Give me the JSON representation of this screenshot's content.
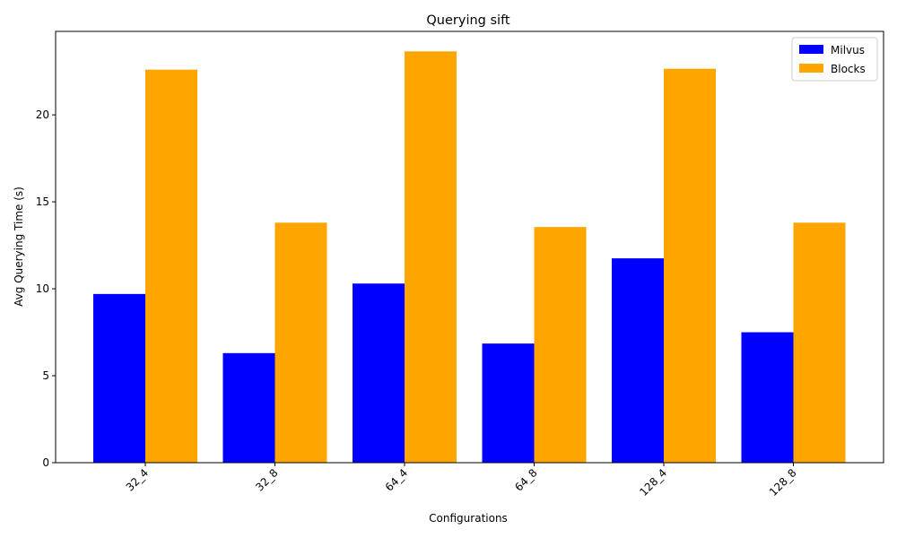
{
  "chart_data": {
    "type": "bar",
    "title": "Querying sift",
    "xlabel": "Configurations",
    "ylabel": "Avg Querying Time (s)",
    "categories": [
      "32_4",
      "32_8",
      "64_4",
      "64_8",
      "128_4",
      "128_8"
    ],
    "series": [
      {
        "name": "Milvus",
        "color": "#0000ff",
        "values": [
          9.7,
          6.3,
          10.3,
          6.85,
          11.75,
          7.5
        ]
      },
      {
        "name": "Blocks",
        "color": "#ffa500",
        "values": [
          22.6,
          13.8,
          23.65,
          13.55,
          22.65,
          13.8
        ]
      }
    ],
    "ylim": [
      0,
      24.8
    ],
    "yticks": [
      0,
      5,
      10,
      15,
      20
    ],
    "grid": false,
    "legend_position": "top-right"
  }
}
